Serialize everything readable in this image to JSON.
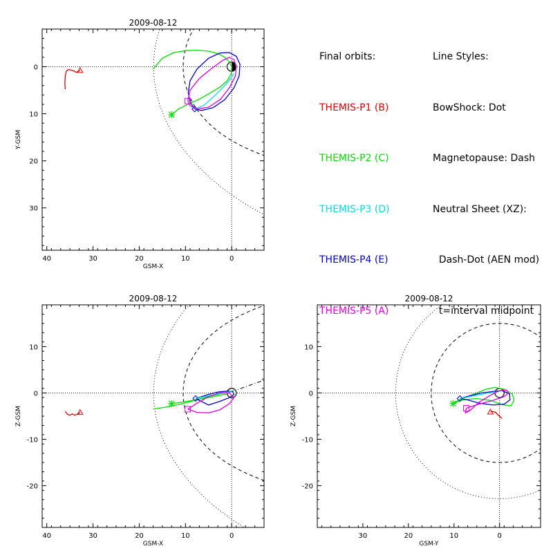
{
  "colors": {
    "P1": "#e00000",
    "P2": "#00dd00",
    "P3": "#00e0e0",
    "P4": "#0000cc",
    "P5": "#e000e0",
    "axes": "#000000"
  },
  "legend": {
    "orbits_title": "Final orbits:",
    "probes": [
      {
        "label": "THEMIS-P1 (B)",
        "color_key": "P1"
      },
      {
        "label": "THEMIS-P2 (C)",
        "color_key": "P2"
      },
      {
        "label": "THEMIS-P3 (D)",
        "color_key": "P3"
      },
      {
        "label": "THEMIS-P4 (E)",
        "color_key": "P4"
      },
      {
        "label": "THEMIS-P5 (A)",
        "color_key": "P5"
      }
    ],
    "styles_title": "Line Styles:",
    "styles": [
      "BowShock: Dot",
      "Magnetopause: Dash",
      "Neutral Sheet (XZ):",
      "  Dash-Dot (AEN mod)",
      "  t=interval midpoint"
    ]
  },
  "chart_data": [
    {
      "type": "line",
      "title": "2009-08-12",
      "xlabel": "GSM-X",
      "ylabel": "Y-GSM",
      "xlim": [
        41,
        -7
      ],
      "ylim": [
        -8,
        39
      ],
      "xticks": [
        40,
        30,
        20,
        10,
        0
      ],
      "xtick_labels": [
        "40",
        "30",
        "20",
        "10",
        "0"
      ],
      "yticks": [
        0,
        10,
        20,
        30
      ],
      "ytick_labels": [
        "0",
        "10",
        "20",
        "30"
      ],
      "series": [
        {
          "key": "P1",
          "x": [
            36,
            36.1,
            36.0,
            35.8,
            35.6,
            35.3,
            34.8,
            34.2,
            33.6,
            32.8
          ],
          "y": [
            4.8,
            3.5,
            2.0,
            1.0,
            0.8,
            0.6,
            0.7,
            0.9,
            1.2,
            0.8
          ],
          "start_marker": "triangle"
        },
        {
          "key": "P2",
          "x": [
            17.0,
            15.0,
            12.5,
            10.0,
            7.5,
            5.0,
            3.0,
            1.5,
            0.5,
            0.0,
            0.1,
            1.0,
            2.5,
            4.5,
            7.0,
            9.5,
            11.5,
            13.0
          ],
          "y": [
            0.5,
            -1.8,
            -3.0,
            -3.4,
            -3.5,
            -3.3,
            -2.8,
            -2.0,
            -1.0,
            0.0,
            1.5,
            3.0,
            4.3,
            5.5,
            6.9,
            8.0,
            9.0,
            10.2
          ],
          "start_marker": "asterisk"
        },
        {
          "key": "P4",
          "x": [
            8.0,
            9.0,
            9.4,
            9.0,
            7.5,
            5.0,
            2.5,
            0.5,
            -1.0,
            -1.8,
            -1.6,
            -0.5,
            1.5,
            4.0,
            6.5,
            8.0
          ],
          "y": [
            9.0,
            7.5,
            5.5,
            3.0,
            0.5,
            -1.8,
            -2.9,
            -3.0,
            -2.2,
            -0.5,
            2.0,
            4.5,
            7.0,
            8.7,
            9.3,
            9.0
          ],
          "start_marker": "diamond"
        },
        {
          "key": "P3",
          "x": [
            8.0,
            6.0,
            3.5,
            1.0,
            -0.5
          ],
          "y": [
            9.0,
            8.2,
            6.0,
            3.5,
            1.5
          ]
        },
        {
          "key": "P5",
          "x": [
            9.5,
            9.0,
            7.0,
            4.5,
            2.0,
            0.5,
            -0.5,
            -1.0,
            -0.8,
            0.5,
            2.5,
            5.0,
            7.5,
            9.0,
            9.5
          ],
          "y": [
            7.3,
            5.0,
            2.5,
            0.5,
            -1.3,
            -2.0,
            -1.5,
            0.0,
            2.0,
            4.5,
            7.0,
            8.6,
            9.0,
            8.3,
            7.3
          ],
          "start_marker": "square"
        }
      ],
      "boundaries": {
        "bow_shock": "dotted",
        "magnetopause": "dashed"
      }
    },
    {
      "type": "line",
      "title": "2009-08-12",
      "xlabel": "GSM-X",
      "ylabel": "Z-GSM",
      "xlim": [
        41,
        -7
      ],
      "ylim": [
        -29,
        19
      ],
      "xticks": [
        40,
        30,
        20,
        10,
        0
      ],
      "xtick_labels": [
        "40",
        "30",
        "20",
        "10",
        "0"
      ],
      "yticks": [
        10,
        0,
        -10,
        -20
      ],
      "ytick_labels": [
        "10",
        "0",
        "-10",
        "-20"
      ],
      "series": [
        {
          "key": "P1",
          "x": [
            36.0,
            35.5,
            35.0,
            34.5,
            34.0,
            33.5,
            33.0,
            32.8
          ],
          "y": [
            -4.0,
            -4.6,
            -4.8,
            -4.5,
            -4.8,
            -4.6,
            -4.4,
            -4.2
          ],
          "start_marker": "triangle"
        },
        {
          "key": "P2",
          "x": [
            17.0,
            14.0,
            11.0,
            8.0,
            5.0,
            2.5,
            0.5,
            -0.5,
            1.0,
            3.0,
            6.0,
            9.0,
            11.5,
            13.0
          ],
          "y": [
            -3.5,
            -3.0,
            -2.4,
            -1.6,
            -0.8,
            -0.2,
            0.2,
            0.5,
            -0.2,
            -0.6,
            -1.2,
            -1.7,
            -2.1,
            -2.3
          ],
          "start_marker": "asterisk"
        },
        {
          "key": "P4",
          "x": [
            7.8,
            6.5,
            5.0,
            3.0,
            1.0,
            -0.2,
            -0.5,
            0.5,
            2.5,
            5.0,
            7.8
          ],
          "y": [
            -1.2,
            -0.8,
            -0.3,
            0.2,
            0.4,
            0.3,
            -0.3,
            -1.0,
            -1.8,
            -2.6,
            -1.2
          ],
          "start_marker": "diamond"
        },
        {
          "key": "P3",
          "x": [
            7.8,
            5.0,
            2.0,
            0.0
          ],
          "y": [
            -1.2,
            -0.6,
            0.0,
            0.3
          ]
        },
        {
          "key": "P5",
          "x": [
            9.5,
            7.5,
            5.0,
            2.5,
            0.5,
            -0.5,
            0.5,
            2.5,
            5.0,
            7.5,
            9.5
          ],
          "y": [
            -3.5,
            -4.2,
            -4.3,
            -3.6,
            -2.3,
            -1.0,
            0.0,
            0.1,
            -0.8,
            -2.2,
            -3.5
          ],
          "start_marker": "square"
        }
      ],
      "boundaries": {
        "bow_shock": "dotted",
        "magnetopause": "dashed",
        "neutral_sheet": "dash-dot"
      }
    },
    {
      "type": "line",
      "title": "2009-08-12",
      "xlabel": "GSM-Y",
      "ylabel": "Z-GSM",
      "xlim": [
        40,
        -9
      ],
      "ylim": [
        -29,
        19
      ],
      "xticks": [
        30,
        20,
        10,
        0
      ],
      "xtick_labels": [
        "30",
        "20",
        "10",
        "0"
      ],
      "yticks": [
        10,
        0,
        -10,
        -20
      ],
      "ytick_labels": [
        "10",
        "0",
        "-10",
        "-20"
      ],
      "series": [
        {
          "key": "P1",
          "x": [
            -0.5,
            0.0,
            0.5,
            0.8,
            1.5,
            2.0
          ],
          "y": [
            -5.5,
            -5.0,
            -4.6,
            -4.2,
            -4.0,
            -4.1
          ],
          "start_marker": "triangle"
        },
        {
          "key": "P2",
          "x": [
            10.2,
            9.0,
            7.0,
            5.0,
            3.0,
            1.0,
            -1.0,
            -2.8,
            -3.2,
            -2.5,
            -0.5,
            2.0,
            5.0,
            8.0,
            10.2
          ],
          "y": [
            -2.3,
            -1.6,
            -0.8,
            0.0,
            0.8,
            1.2,
            0.8,
            -0.2,
            -1.5,
            -2.8,
            -2.5,
            -1.6,
            -1.2,
            -1.5,
            -2.3
          ],
          "start_marker": "asterisk"
        },
        {
          "key": "P4",
          "x": [
            8.7,
            6.5,
            4.0,
            1.5,
            -0.5,
            -2.2,
            -2.3,
            -1.0,
            1.5,
            4.5,
            7.0,
            8.7
          ],
          "y": [
            -1.2,
            -0.6,
            0.0,
            0.3,
            0.5,
            -0.2,
            -1.5,
            -2.4,
            -2.6,
            -2.2,
            -1.5,
            -1.2
          ],
          "start_marker": "diamond"
        },
        {
          "key": "P3",
          "x": [
            8.7,
            5.5,
            2.5,
            0.0
          ],
          "y": [
            -1.2,
            -0.6,
            0.0,
            0.3
          ]
        },
        {
          "key": "P5",
          "x": [
            7.3,
            7.5,
            6.5,
            4.5,
            2.0,
            0.0,
            -1.5,
            -2.0,
            -1.0,
            1.5,
            4.5,
            6.5,
            7.3
          ],
          "y": [
            -3.3,
            -4.3,
            -3.8,
            -2.0,
            -0.5,
            0.5,
            0.6,
            0.0,
            -0.8,
            -1.6,
            -2.4,
            -3.0,
            -3.3
          ],
          "start_marker": "square"
        }
      ],
      "boundaries": {
        "bow_shock": "dotted",
        "magnetopause": "dashed"
      }
    }
  ]
}
